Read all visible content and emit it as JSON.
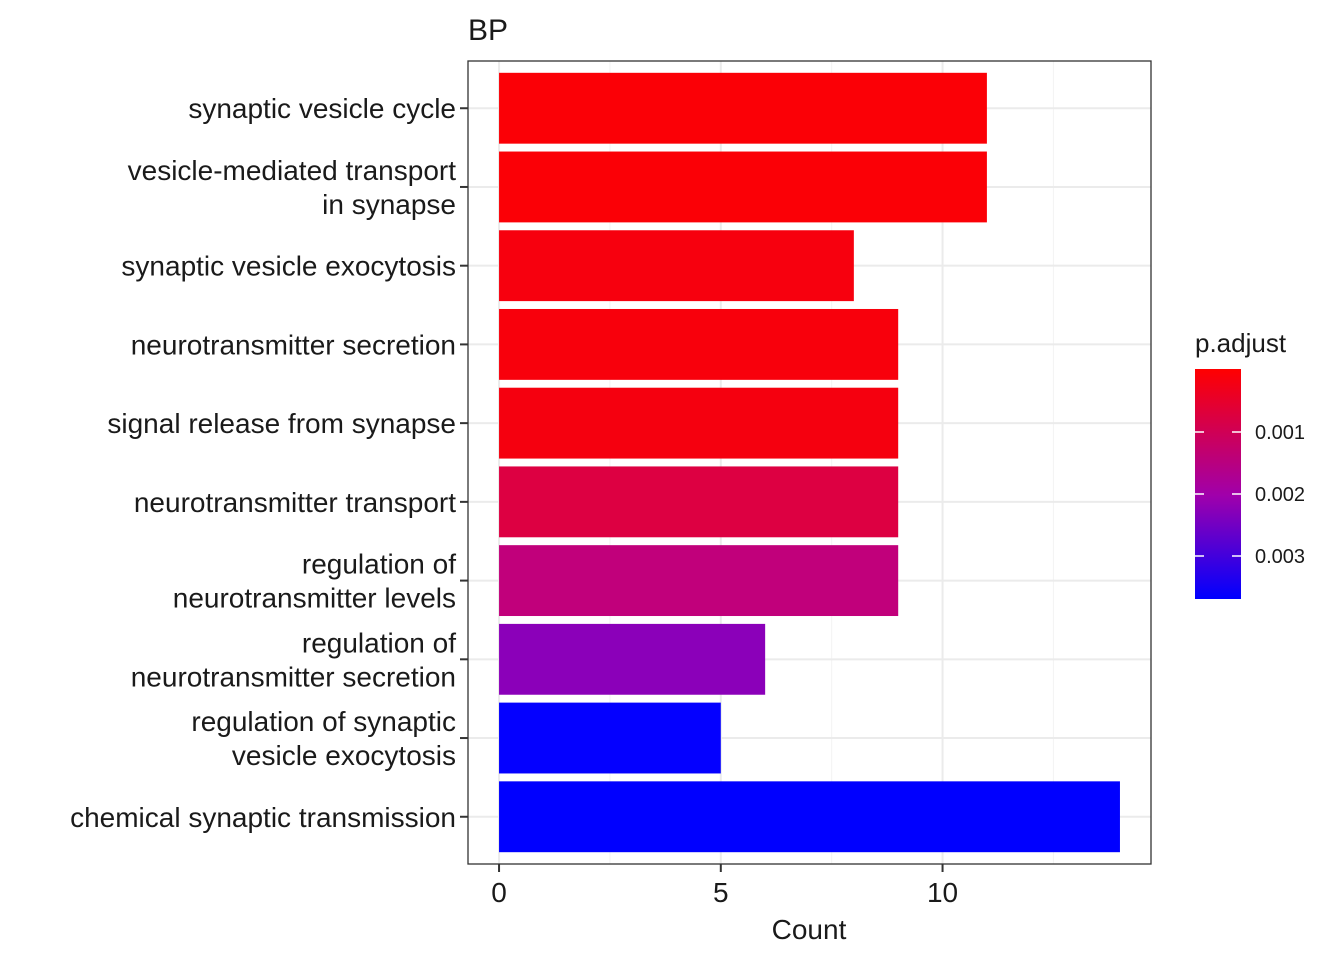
{
  "chart_data": {
    "type": "bar",
    "orientation": "horizontal",
    "title": "BP",
    "xlabel": "Count",
    "ylabel": "",
    "xlim": [
      -0.7,
      14.7
    ],
    "xticks": [
      "0",
      "5",
      "10"
    ],
    "grid": true,
    "categories": [
      [
        "synaptic vesicle cycle"
      ],
      [
        "vesicle-mediated transport",
        "in synapse"
      ],
      [
        "synaptic vesicle exocytosis"
      ],
      [
        "neurotransmitter secretion"
      ],
      [
        "signal release from synapse"
      ],
      [
        "neurotransmitter transport"
      ],
      [
        "regulation of",
        "neurotransmitter levels"
      ],
      [
        "regulation of",
        "neurotransmitter secretion"
      ],
      [
        "regulation of synaptic",
        "vesicle exocytosis"
      ],
      [
        "chemical synaptic transmission"
      ]
    ],
    "values": [
      11,
      11,
      8,
      9,
      9,
      9,
      9,
      6,
      5,
      14
    ],
    "bar_colors": [
      "#fb0006",
      "#fb0006",
      "#f7000e",
      "#f8000c",
      "#f5000f",
      "#dd0042",
      "#c1007b",
      "#8b00b9",
      "#0400ff",
      "#0000ff"
    ],
    "legend": {
      "title": "p.adjust",
      "placement": "right",
      "gradient": [
        "#ff0000",
        "#a000ab",
        "#0000ff"
      ],
      "ticks": [
        "0.001",
        "0.002",
        "0.003"
      ]
    }
  }
}
